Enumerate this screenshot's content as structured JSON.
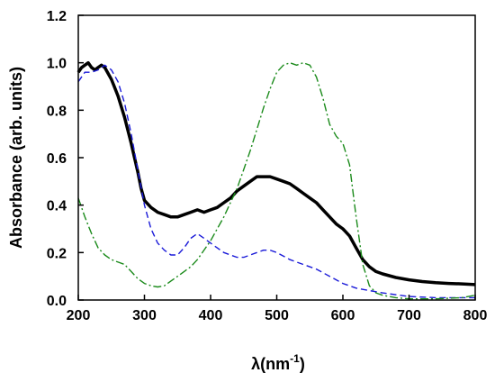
{
  "chart_data": {
    "type": "line",
    "title": "",
    "xlabel": "λ(nm",
    "xlabel_sup": "-1",
    "xlabel_close": ")",
    "ylabel": "Absorbance (arb. units)",
    "xlim": [
      200,
      800
    ],
    "ylim": [
      0.0,
      1.2
    ],
    "xticks": [
      "200",
      "300",
      "400",
      "500",
      "600",
      "700",
      "800"
    ],
    "yticks": [
      "0.0",
      "0.2",
      "0.4",
      "0.6",
      "0.8",
      "1.0",
      "1.2"
    ],
    "grid": false,
    "legend": "none",
    "series": [
      {
        "color": "#000000",
        "style": "solid",
        "x": [
          200,
          205,
          210,
          215,
          220,
          225,
          230,
          235,
          240,
          250,
          260,
          270,
          280,
          290,
          295,
          300,
          310,
          320,
          330,
          340,
          350,
          360,
          370,
          380,
          390,
          400,
          410,
          420,
          430,
          440,
          450,
          460,
          470,
          480,
          490,
          500,
          510,
          520,
          530,
          540,
          550,
          560,
          570,
          580,
          590,
          600,
          610,
          620,
          630,
          640,
          650,
          660,
          680,
          700,
          720,
          740,
          760,
          780,
          800
        ],
        "y": [
          0.96,
          0.98,
          0.99,
          1.0,
          0.98,
          0.97,
          0.98,
          0.99,
          0.98,
          0.93,
          0.86,
          0.77,
          0.66,
          0.54,
          0.47,
          0.42,
          0.39,
          0.37,
          0.36,
          0.35,
          0.35,
          0.36,
          0.37,
          0.38,
          0.37,
          0.38,
          0.39,
          0.41,
          0.43,
          0.46,
          0.48,
          0.5,
          0.52,
          0.52,
          0.52,
          0.51,
          0.5,
          0.49,
          0.47,
          0.45,
          0.43,
          0.41,
          0.38,
          0.35,
          0.32,
          0.3,
          0.27,
          0.22,
          0.17,
          0.14,
          0.12,
          0.11,
          0.095,
          0.085,
          0.078,
          0.073,
          0.07,
          0.068,
          0.065
        ]
      },
      {
        "color": "#1a1ad8",
        "style": "dashed",
        "x": [
          200,
          210,
          220,
          230,
          240,
          250,
          260,
          270,
          280,
          290,
          300,
          310,
          320,
          330,
          340,
          350,
          360,
          370,
          380,
          390,
          400,
          410,
          420,
          430,
          440,
          450,
          460,
          470,
          480,
          490,
          500,
          520,
          540,
          560,
          580,
          600,
          620,
          640,
          660,
          700,
          740,
          780,
          800
        ],
        "y": [
          0.92,
          0.96,
          0.96,
          0.97,
          0.99,
          0.97,
          0.92,
          0.83,
          0.7,
          0.55,
          0.4,
          0.3,
          0.24,
          0.21,
          0.19,
          0.19,
          0.22,
          0.26,
          0.28,
          0.26,
          0.24,
          0.22,
          0.2,
          0.19,
          0.18,
          0.18,
          0.19,
          0.2,
          0.21,
          0.21,
          0.2,
          0.17,
          0.15,
          0.13,
          0.1,
          0.07,
          0.05,
          0.04,
          0.03,
          0.015,
          0.01,
          0.01,
          0.01
        ]
      },
      {
        "color": "#1a8a1a",
        "style": "dashdot",
        "x": [
          200,
          210,
          220,
          230,
          240,
          250,
          260,
          270,
          280,
          290,
          300,
          310,
          320,
          330,
          340,
          350,
          360,
          370,
          380,
          400,
          420,
          440,
          450,
          460,
          470,
          480,
          490,
          500,
          510,
          520,
          530,
          540,
          550,
          560,
          570,
          580,
          590,
          600,
          610,
          620,
          630,
          640,
          650,
          660,
          680,
          700,
          740,
          780,
          800
        ],
        "y": [
          0.43,
          0.35,
          0.28,
          0.22,
          0.19,
          0.17,
          0.16,
          0.15,
          0.12,
          0.09,
          0.07,
          0.06,
          0.055,
          0.06,
          0.08,
          0.1,
          0.12,
          0.14,
          0.17,
          0.25,
          0.35,
          0.47,
          0.55,
          0.63,
          0.72,
          0.81,
          0.89,
          0.96,
          0.99,
          1.0,
          0.99,
          1.0,
          0.99,
          0.94,
          0.85,
          0.74,
          0.69,
          0.66,
          0.57,
          0.35,
          0.15,
          0.06,
          0.03,
          0.02,
          0.01,
          0.005,
          0.005,
          0.01,
          0.02
        ]
      }
    ]
  }
}
